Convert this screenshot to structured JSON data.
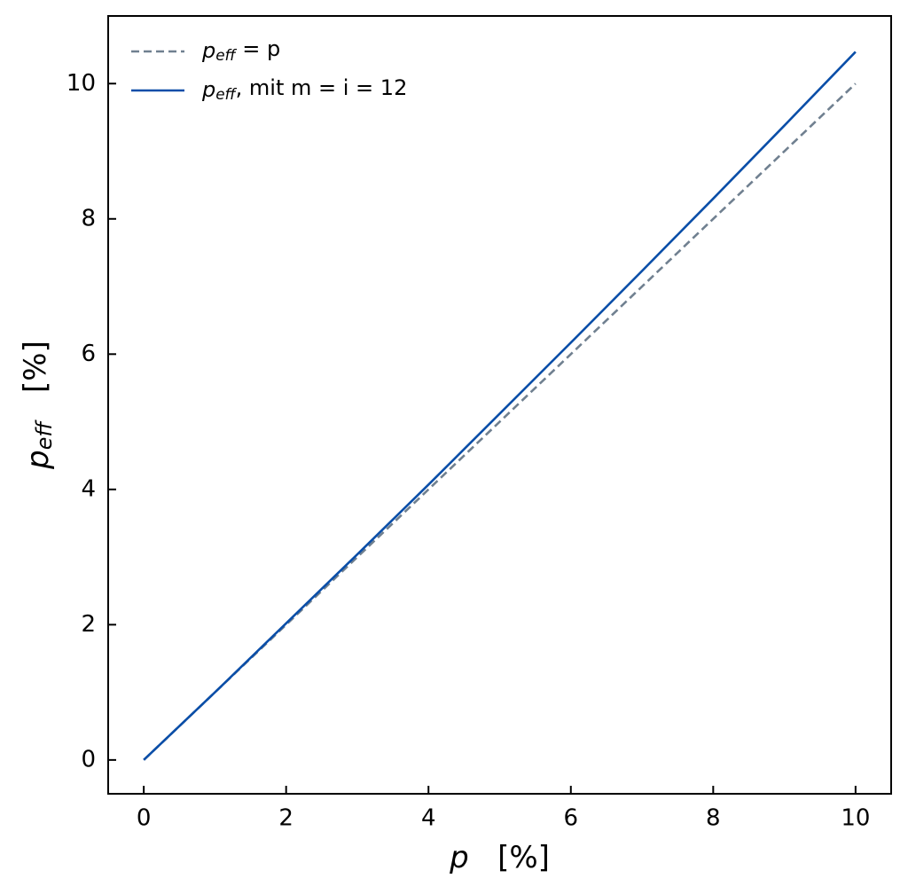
{
  "chart_data": {
    "type": "line",
    "x_label": "p   [%]",
    "y_label": "peff   [%]",
    "x": [
      0,
      1,
      2,
      3,
      4,
      5,
      6,
      7,
      8,
      9,
      10
    ],
    "series": [
      {
        "name": "peff = p",
        "color": "#708090",
        "dash": true,
        "values": [
          0,
          1,
          2,
          3,
          4,
          5,
          6,
          7,
          8,
          9,
          10
        ]
      },
      {
        "name": "peff, mit m = i = 12",
        "color": "#0a4ea8",
        "dash": false,
        "values": [
          0,
          1.0,
          2.02,
          3.04,
          4.07,
          5.12,
          6.17,
          7.23,
          8.3,
          9.38,
          10.47
        ]
      }
    ],
    "xlim": [
      -0.5,
      10.5
    ],
    "ylim": [
      -0.5,
      11.0
    ],
    "xticks": [
      0,
      2,
      4,
      6,
      8,
      10
    ],
    "yticks": [
      0,
      2,
      4,
      6,
      8,
      10
    ],
    "grid": false,
    "legend": "upper left"
  }
}
